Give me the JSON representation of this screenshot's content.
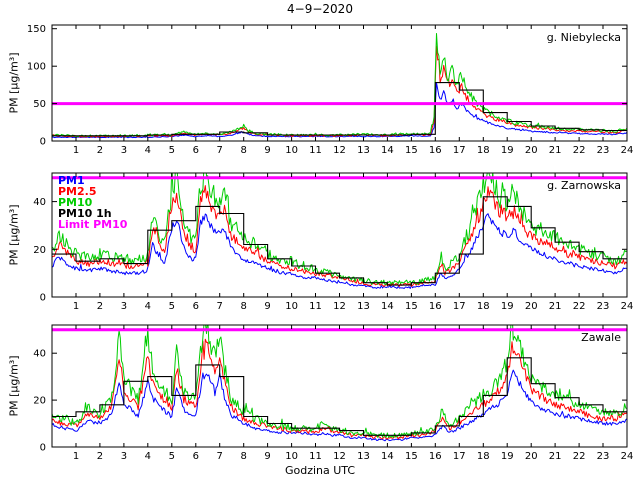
{
  "title": "4−9−2020",
  "xlabel": "Godzina UTC",
  "ylabel": "PM [µg/m³]",
  "colors": {
    "pm1": "#0000ff",
    "pm25": "#ff0000",
    "pm10": "#00cc00",
    "pm10_1h": "#000000",
    "limit": "#ff00ff",
    "frame": "#000000",
    "background": "#ffffff"
  },
  "legend": [
    {
      "label": "PM1",
      "color": "#0000ff"
    },
    {
      "label": "PM2.5",
      "color": "#ff0000"
    },
    {
      "label": "PM10",
      "color": "#00cc00"
    },
    {
      "label": "PM10 1h",
      "color": "#000000"
    },
    {
      "label": "Limit PM10",
      "color": "#ff00ff"
    }
  ],
  "xticks": [
    1,
    2,
    3,
    4,
    5,
    6,
    7,
    8,
    9,
    10,
    11,
    12,
    13,
    14,
    15,
    16,
    17,
    18,
    19,
    20,
    21,
    22,
    23,
    24
  ],
  "chart_data": [
    {
      "type": "line",
      "station": "g. Niebylecka",
      "xlim": [
        0,
        24
      ],
      "ylim": [
        0,
        155
      ],
      "yticks": [
        0,
        50,
        100,
        150
      ],
      "limit_pm10": 50,
      "x": [
        0,
        1,
        2,
        3,
        4,
        5,
        5.5,
        6,
        6.5,
        7,
        7.5,
        8,
        8.2,
        8.5,
        9,
        10,
        11,
        12,
        13,
        14,
        15,
        15.5,
        15.8,
        15.95,
        16.05,
        16.2,
        16.35,
        16.5,
        16.7,
        16.9,
        17.1,
        17.3,
        17.6,
        18,
        18.5,
        19,
        19.5,
        20,
        21,
        22,
        23,
        23.5,
        24
      ],
      "series": [
        {
          "name": "PM1",
          "color": "#0000ff",
          "values": [
            5,
            5,
            5,
            5,
            5,
            6,
            8,
            6,
            7,
            6,
            8,
            12,
            9,
            7,
            6,
            6,
            6,
            6,
            6,
            6,
            7,
            6,
            7,
            18,
            74,
            54,
            66,
            49,
            55,
            44,
            50,
            40,
            33,
            27,
            21,
            17,
            15,
            13,
            11,
            10,
            9,
            9,
            11
          ]
        },
        {
          "name": "PM2.5",
          "color": "#ff0000",
          "values": [
            7,
            6,
            6,
            6,
            7,
            7,
            10,
            8,
            9,
            8,
            11,
            17,
            12,
            9,
            8,
            7,
            7,
            7,
            8,
            7,
            9,
            8,
            9,
            26,
            126,
            82,
            98,
            72,
            80,
            64,
            74,
            58,
            47,
            36,
            29,
            24,
            20,
            18,
            15,
            13,
            12,
            11,
            14
          ]
        },
        {
          "name": "PM10",
          "color": "#00cc00",
          "values": [
            8,
            7,
            7,
            7,
            8,
            8,
            12,
            9,
            10,
            9,
            13,
            20,
            14,
            10,
            9,
            8,
            8,
            8,
            9,
            8,
            10,
            9,
            10,
            30,
            148,
            95,
            115,
            85,
            95,
            75,
            88,
            68,
            55,
            42,
            33,
            27,
            23,
            20,
            17,
            15,
            14,
            13,
            16
          ]
        }
      ],
      "pm10_1h": [
        7,
        7,
        7,
        7,
        8,
        9,
        9,
        12,
        11,
        8,
        8,
        8,
        8,
        8,
        8,
        9,
        78,
        68,
        38,
        26,
        20,
        17,
        15,
        14
      ]
    },
    {
      "type": "line",
      "station": "g. Zarnowska",
      "xlim": [
        0,
        24
      ],
      "ylim": [
        0,
        52
      ],
      "yticks": [
        0,
        20,
        40
      ],
      "limit_pm10": 50,
      "x": [
        0,
        0.3,
        0.6,
        1,
        1.5,
        2,
        2.5,
        3,
        3.5,
        4,
        4.2,
        4.4,
        4.7,
        5,
        5.2,
        5.5,
        5.8,
        6,
        6.2,
        6.4,
        6.6,
        6.8,
        7,
        7.2,
        7.5,
        8,
        8.5,
        9,
        9.5,
        10,
        10.5,
        11,
        11.5,
        12,
        12.5,
        13,
        13.5,
        14,
        14.5,
        15,
        15.5,
        16,
        16.2,
        16.4,
        16.7,
        17,
        17.5,
        18,
        18.2,
        18.4,
        18.7,
        19,
        19.3,
        19.6,
        20,
        20.5,
        21,
        21.5,
        22,
        22.5,
        23,
        23.5,
        24
      ],
      "series": [
        {
          "name": "PM1",
          "color": "#0000ff",
          "values": [
            13,
            17,
            14,
            12,
            11,
            12,
            11,
            10,
            10,
            11,
            23,
            18,
            14,
            29,
            33,
            21,
            16,
            16,
            31,
            34,
            30,
            27,
            26,
            28,
            20,
            16,
            14,
            12,
            10,
            10,
            8,
            8,
            7,
            6,
            5,
            5,
            4,
            4,
            4,
            4,
            5,
            5,
            10,
            8,
            9,
            12,
            20,
            30,
            34,
            31,
            27,
            26,
            28,
            23,
            20,
            18,
            16,
            14,
            13,
            12,
            11,
            10,
            12
          ]
        },
        {
          "name": "PM2.5",
          "color": "#ff0000",
          "values": [
            17,
            22,
            19,
            15,
            14,
            15,
            14,
            13,
            13,
            14,
            29,
            24,
            18,
            38,
            42,
            27,
            21,
            20,
            40,
            44,
            39,
            35,
            34,
            36,
            25,
            21,
            18,
            15,
            13,
            12,
            11,
            10,
            9,
            8,
            7,
            6,
            5,
            5,
            5,
            5,
            6,
            7,
            13,
            10,
            12,
            15,
            25,
            39,
            44,
            41,
            36,
            34,
            36,
            30,
            25,
            23,
            21,
            18,
            17,
            15,
            14,
            13,
            15
          ]
        },
        {
          "name": "PM10",
          "color": "#00cc00",
          "values": [
            20,
            26,
            22,
            18,
            17,
            18,
            17,
            16,
            15,
            17,
            35,
            28,
            22,
            45,
            50,
            32,
            25,
            24,
            48,
            52,
            46,
            42,
            40,
            43,
            30,
            25,
            22,
            18,
            16,
            15,
            13,
            12,
            10,
            9,
            8,
            7,
            6,
            6,
            6,
            6,
            7,
            8,
            16,
            12,
            14,
            18,
            30,
            46,
            52,
            48,
            42,
            40,
            43,
            36,
            30,
            28,
            25,
            22,
            20,
            18,
            17,
            15,
            18
          ]
        }
      ],
      "pm10_1h": [
        18,
        15,
        16,
        14,
        28,
        32,
        38,
        35,
        22,
        16,
        13,
        10,
        8,
        6,
        5,
        6,
        10,
        18,
        42,
        38,
        29,
        23,
        19,
        16
      ]
    },
    {
      "type": "line",
      "station": "Zawale",
      "xlim": [
        0,
        24
      ],
      "ylim": [
        0,
        52
      ],
      "yticks": [
        0,
        20,
        40
      ],
      "limit_pm10": 50,
      "x": [
        0,
        0.5,
        1,
        1.5,
        2,
        2.5,
        2.8,
        3,
        3.3,
        3.6,
        4,
        4.2,
        4.5,
        5,
        5.2,
        5.5,
        6,
        6.3,
        6.5,
        6.8,
        7,
        7.2,
        7.5,
        8,
        8.5,
        9,
        9.5,
        10,
        10.5,
        11,
        11.3,
        11.6,
        12,
        12.5,
        13,
        13.5,
        14,
        14.5,
        15,
        15.5,
        16,
        16.3,
        16.6,
        17,
        17.5,
        18,
        18.5,
        19,
        19.2,
        19.4,
        19.7,
        20,
        20.5,
        21,
        21.5,
        22,
        22.5,
        23,
        23.5,
        24
      ],
      "series": [
        {
          "name": "PM1",
          "color": "#0000ff",
          "values": [
            9,
            8,
            7,
            11,
            10,
            14,
            28,
            19,
            16,
            13,
            28,
            21,
            17,
            13,
            25,
            16,
            13,
            30,
            31,
            23,
            30,
            21,
            13,
            10,
            8,
            7,
            6,
            6,
            6,
            5,
            6,
            5,
            5,
            4,
            4,
            3,
            3,
            3,
            4,
            4,
            5,
            9,
            6,
            8,
            11,
            14,
            17,
            22,
            32,
            29,
            24,
            19,
            16,
            14,
            13,
            12,
            11,
            10,
            10,
            11
          ]
        },
        {
          "name": "PM2.5",
          "color": "#ff0000",
          "values": [
            11,
            10,
            9,
            14,
            12,
            18,
            38,
            25,
            20,
            17,
            38,
            28,
            22,
            17,
            33,
            20,
            17,
            40,
            42,
            31,
            40,
            28,
            17,
            12,
            10,
            9,
            8,
            7,
            7,
            6,
            8,
            7,
            6,
            5,
            5,
            4,
            4,
            4,
            5,
            5,
            7,
            12,
            8,
            10,
            15,
            18,
            22,
            30,
            43,
            39,
            32,
            25,
            21,
            18,
            17,
            15,
            13,
            12,
            12,
            14
          ]
        },
        {
          "name": "PM10",
          "color": "#00cc00",
          "values": [
            13,
            12,
            10,
            17,
            14,
            22,
            46,
            30,
            24,
            20,
            46,
            34,
            26,
            20,
            40,
            24,
            20,
            48,
            50,
            38,
            48,
            34,
            20,
            15,
            12,
            10,
            9,
            8,
            8,
            7,
            10,
            8,
            7,
            6,
            6,
            5,
            5,
            5,
            6,
            6,
            8,
            15,
            9,
            12,
            18,
            22,
            26,
            36,
            50,
            46,
            38,
            30,
            25,
            22,
            20,
            18,
            16,
            15,
            14,
            17
          ]
        }
      ],
      "pm10_1h": [
        13,
        15,
        18,
        28,
        30,
        22,
        35,
        30,
        13,
        10,
        8,
        8,
        7,
        5,
        5,
        6,
        9,
        13,
        22,
        38,
        27,
        21,
        18,
        15
      ]
    }
  ]
}
